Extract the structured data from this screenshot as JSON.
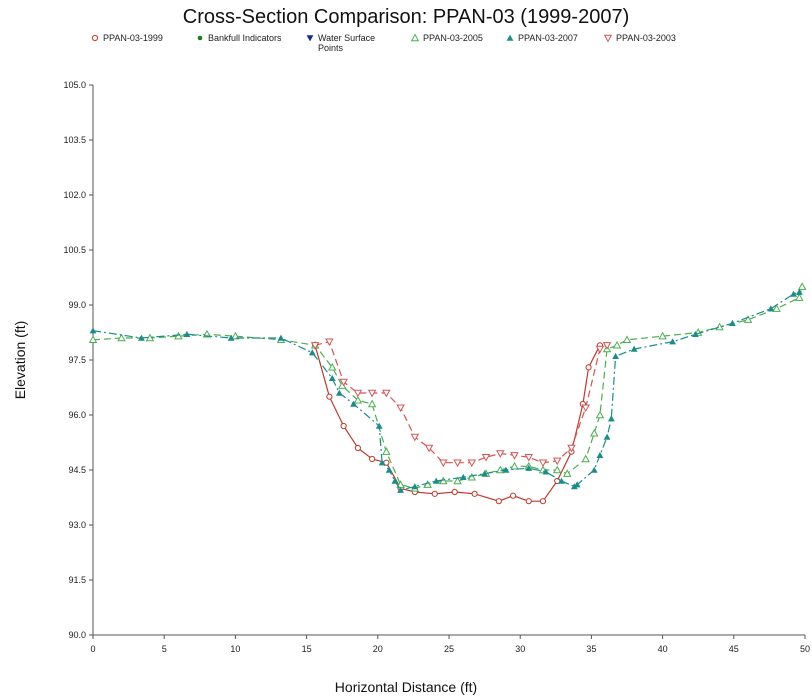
{
  "chart_data": {
    "type": "line",
    "title": "Cross-Section Comparison: PPAN-03 (1999-2007)",
    "xlabel": "Horizontal Distance (ft)",
    "ylabel": "Elevation (ft)",
    "xlim": [
      0,
      50
    ],
    "ylim": [
      90,
      105
    ],
    "x_ticks": [
      "0",
      "5",
      "10",
      "15",
      "20",
      "25",
      "30",
      "35",
      "40",
      "45",
      "50"
    ],
    "y_ticks": [
      "90.0",
      "91.5",
      "93.0",
      "94.5",
      "96.0",
      "97.5",
      "99.0",
      "100.5",
      "102.0",
      "103.5",
      "105.0"
    ],
    "grid": false,
    "legend_position": "top",
    "series": [
      {
        "name": "PPAN-03-1999",
        "color": "#c0392b",
        "marker": "circle-open",
        "dash": "solid",
        "points": [
          [
            15.6,
            97.9
          ],
          [
            16.6,
            96.5
          ],
          [
            17.6,
            95.7
          ],
          [
            18.6,
            95.1
          ],
          [
            19.6,
            94.8
          ],
          [
            20.6,
            94.7
          ],
          [
            21.6,
            94.0
          ],
          [
            22.6,
            93.9
          ],
          [
            24.0,
            93.85
          ],
          [
            25.4,
            93.9
          ],
          [
            26.8,
            93.85
          ],
          [
            28.5,
            93.65
          ],
          [
            29.5,
            93.8
          ],
          [
            30.6,
            93.65
          ],
          [
            31.6,
            93.65
          ],
          [
            32.6,
            94.2
          ],
          [
            33.6,
            95.0
          ],
          [
            34.4,
            96.3
          ],
          [
            34.8,
            97.3
          ],
          [
            35.6,
            97.9
          ]
        ]
      },
      {
        "name": "Bankfull Indicators",
        "color": "#1e7a1e",
        "marker": "dot",
        "dash": "none",
        "points": []
      },
      {
        "name": "Water Surface Points",
        "color": "#1a2a8c",
        "marker": "triangle-down",
        "dash": "none",
        "points": []
      },
      {
        "name": "PPAN-03-2005",
        "color": "#4caf50",
        "marker": "triangle-open",
        "dash": "dashed",
        "points": [
          [
            0.0,
            98.05
          ],
          [
            2.0,
            98.1
          ],
          [
            4.0,
            98.1
          ],
          [
            6.0,
            98.15
          ],
          [
            8.0,
            98.2
          ],
          [
            10.0,
            98.15
          ],
          [
            13.2,
            98.05
          ],
          [
            15.6,
            97.9
          ],
          [
            16.8,
            97.3
          ],
          [
            17.5,
            96.8
          ],
          [
            18.6,
            96.4
          ],
          [
            19.6,
            96.3
          ],
          [
            20.6,
            95.0
          ],
          [
            21.6,
            94.1
          ],
          [
            22.6,
            94.0
          ],
          [
            23.5,
            94.1
          ],
          [
            24.6,
            94.2
          ],
          [
            25.6,
            94.2
          ],
          [
            26.6,
            94.3
          ],
          [
            27.6,
            94.4
          ],
          [
            28.6,
            94.5
          ],
          [
            29.6,
            94.6
          ],
          [
            30.6,
            94.6
          ],
          [
            31.6,
            94.5
          ],
          [
            32.6,
            94.5
          ],
          [
            33.3,
            94.4
          ],
          [
            34.6,
            94.8
          ],
          [
            35.2,
            95.5
          ],
          [
            35.6,
            96.0
          ],
          [
            36.1,
            97.8
          ],
          [
            36.8,
            97.9
          ],
          [
            37.5,
            98.05
          ],
          [
            40.0,
            98.15
          ],
          [
            42.5,
            98.25
          ],
          [
            44.0,
            98.4
          ],
          [
            46.0,
            98.6
          ],
          [
            48.0,
            98.9
          ],
          [
            49.6,
            99.2
          ],
          [
            49.8,
            99.5
          ]
        ]
      },
      {
        "name": "PPAN-03-2007",
        "color": "#1a8c8c",
        "marker": "triangle-filled",
        "dash": "dashdot",
        "points": [
          [
            0.0,
            98.3
          ],
          [
            3.4,
            98.1
          ],
          [
            6.6,
            98.2
          ],
          [
            9.7,
            98.1
          ],
          [
            13.2,
            98.1
          ],
          [
            15.4,
            97.7
          ],
          [
            16.8,
            97.0
          ],
          [
            17.3,
            96.6
          ],
          [
            18.3,
            96.3
          ],
          [
            20.1,
            95.7
          ],
          [
            20.3,
            94.7
          ],
          [
            20.8,
            94.5
          ],
          [
            21.2,
            94.2
          ],
          [
            21.6,
            93.95
          ],
          [
            22.6,
            94.05
          ],
          [
            24.1,
            94.2
          ],
          [
            26.0,
            94.3
          ],
          [
            27.5,
            94.4
          ],
          [
            29.0,
            94.5
          ],
          [
            30.6,
            94.55
          ],
          [
            31.8,
            94.45
          ],
          [
            32.9,
            94.2
          ],
          [
            33.8,
            94.05
          ],
          [
            34.0,
            94.1
          ],
          [
            35.2,
            94.5
          ],
          [
            35.6,
            94.9
          ],
          [
            36.1,
            95.4
          ],
          [
            36.4,
            95.9
          ],
          [
            36.7,
            97.6
          ],
          [
            38.0,
            97.8
          ],
          [
            40.7,
            98.0
          ],
          [
            42.3,
            98.2
          ],
          [
            44.9,
            98.5
          ],
          [
            47.6,
            98.9
          ],
          [
            49.2,
            99.3
          ],
          [
            49.6,
            99.35
          ]
        ]
      },
      {
        "name": "PPAN-03-2003",
        "color": "#d35454",
        "marker": "triangle-down-open",
        "dash": "dashed",
        "points": [
          [
            15.6,
            97.9
          ],
          [
            16.6,
            98.0
          ],
          [
            17.6,
            96.9
          ],
          [
            18.6,
            96.6
          ],
          [
            19.6,
            96.6
          ],
          [
            20.6,
            96.6
          ],
          [
            21.6,
            96.2
          ],
          [
            22.6,
            95.4
          ],
          [
            23.6,
            95.1
          ],
          [
            24.6,
            94.7
          ],
          [
            25.6,
            94.7
          ],
          [
            26.6,
            94.7
          ],
          [
            27.6,
            94.85
          ],
          [
            28.6,
            94.95
          ],
          [
            29.6,
            94.9
          ],
          [
            30.6,
            94.85
          ],
          [
            31.6,
            94.7
          ],
          [
            32.6,
            94.75
          ],
          [
            33.6,
            95.1
          ],
          [
            34.6,
            96.2
          ],
          [
            35.6,
            97.8
          ],
          [
            36.1,
            97.9
          ]
        ]
      }
    ]
  }
}
